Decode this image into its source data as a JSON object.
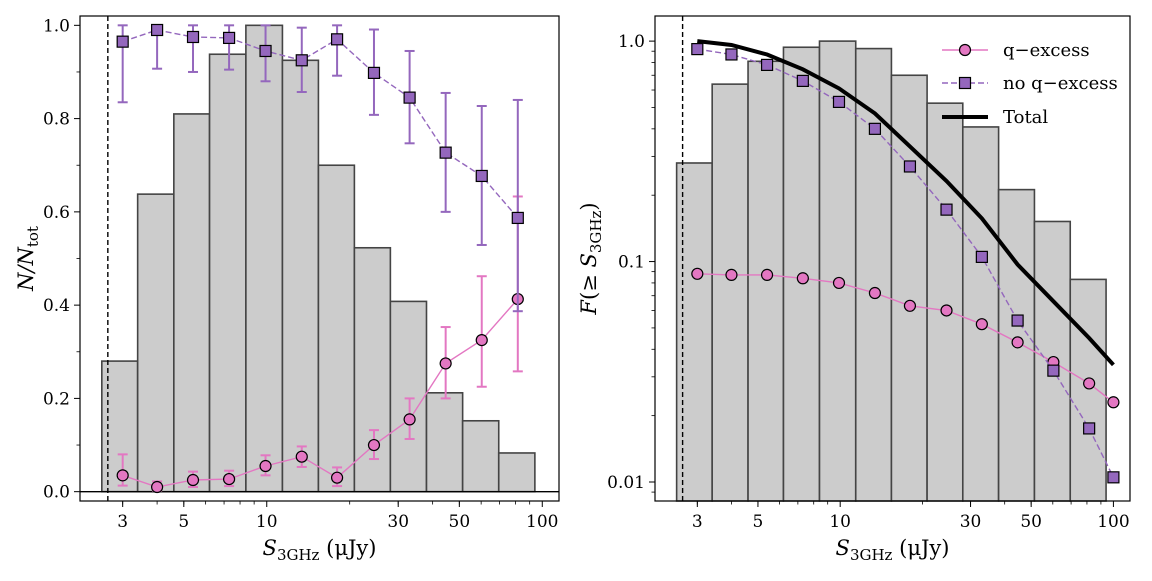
{
  "chart_data": [
    {
      "panel": "left",
      "type": "bar",
      "xlabel": "S_3GHz (μJy)",
      "ylabel": "N/N_tot",
      "xscale": "log",
      "yscale": "linear",
      "xlim": [
        2.1,
        115
      ],
      "ylim": [
        -0.02,
        1.02
      ],
      "xticks": [
        3,
        5,
        10,
        30,
        50,
        100
      ],
      "yticks": [
        "0.0",
        "0.2",
        "0.4",
        "0.6",
        "0.8",
        "1.0"
      ],
      "vline_x": 2.65,
      "hline_y": 0,
      "histogram": {
        "edges": [
          2.52,
          3.4,
          4.6,
          6.2,
          8.4,
          11.4,
          15.4,
          20.8,
          28.1,
          38.0,
          51.4,
          69.5,
          94.0
        ],
        "values": [
          0.28,
          0.638,
          0.81,
          0.938,
          1.0,
          0.925,
          0.7,
          0.523,
          0.408,
          0.212,
          0.152,
          0.083
        ]
      },
      "series": [
        {
          "name": "q-excess",
          "marker": "circle",
          "color": "#e377c2",
          "x": [
            3.0,
            4.0,
            5.4,
            7.3,
            9.9,
            13.4,
            18.0,
            24.5,
            33.0,
            44.6,
            60.3,
            81.5
          ],
          "y": [
            0.035,
            0.01,
            0.025,
            0.027,
            0.055,
            0.075,
            0.03,
            0.1,
            0.155,
            0.275,
            0.325,
            0.413
          ],
          "err_low": [
            0.022,
            0.008,
            0.015,
            0.015,
            0.02,
            0.022,
            0.018,
            0.03,
            0.042,
            0.075,
            0.1,
            0.155
          ],
          "err_high": [
            0.045,
            0.012,
            0.018,
            0.018,
            0.023,
            0.022,
            0.022,
            0.032,
            0.045,
            0.078,
            0.137,
            0.22
          ]
        },
        {
          "name": "no q-excess",
          "marker": "square",
          "color": "#9467bd",
          "x": [
            3.0,
            4.0,
            5.4,
            7.3,
            9.9,
            13.4,
            18.0,
            24.5,
            33.0,
            44.6,
            60.3,
            81.5
          ],
          "y": [
            0.965,
            0.99,
            0.975,
            0.973,
            0.945,
            0.925,
            0.97,
            0.898,
            0.845,
            0.727,
            0.677,
            0.587
          ],
          "err_low": [
            0.13,
            0.083,
            0.075,
            0.068,
            0.065,
            0.068,
            0.078,
            0.09,
            0.098,
            0.127,
            0.148,
            0.2
          ],
          "err_high": [
            0.035,
            0.01,
            0.025,
            0.027,
            0.055,
            0.07,
            0.03,
            0.093,
            0.1,
            0.128,
            0.15,
            0.253
          ]
        }
      ]
    },
    {
      "panel": "right",
      "type": "bar",
      "xlabel": "S_3GHz (μJy)",
      "ylabel": "F(≥ S_3GHz)",
      "xscale": "log",
      "yscale": "log",
      "xlim": [
        2.1,
        115
      ],
      "ylim": [
        0.0082,
        1.3
      ],
      "xticks": [
        3,
        5,
        10,
        30,
        50,
        100
      ],
      "yticks": [
        "0.01",
        "0.1",
        "1.0"
      ],
      "vline_x": 2.65,
      "histogram": {
        "edges": [
          2.52,
          3.4,
          4.6,
          6.2,
          8.4,
          11.4,
          15.4,
          20.8,
          28.1,
          38.0,
          51.4,
          69.5,
          94.0
        ],
        "values": [
          0.28,
          0.638,
          0.81,
          0.938,
          1.0,
          0.925,
          0.7,
          0.523,
          0.408,
          0.212,
          0.152,
          0.083
        ]
      },
      "series": [
        {
          "name": "q-excess",
          "marker": "circle",
          "color": "#e377c2",
          "x": [
            3.0,
            4.0,
            5.4,
            7.3,
            9.9,
            13.4,
            18.0,
            24.5,
            33.0,
            44.6,
            60.3,
            81.5,
            100.0
          ],
          "y": [
            0.088,
            0.087,
            0.087,
            0.084,
            0.08,
            0.072,
            0.063,
            0.06,
            0.052,
            0.043,
            0.035,
            0.028,
            0.023
          ]
        },
        {
          "name": "no q-excess",
          "marker": "square",
          "color": "#9467bd",
          "x": [
            3.0,
            4.0,
            5.4,
            7.3,
            9.9,
            13.4,
            18.0,
            24.5,
            33.0,
            44.6,
            60.3,
            81.5,
            100.0
          ],
          "y": [
            0.92,
            0.87,
            0.78,
            0.66,
            0.53,
            0.4,
            0.27,
            0.172,
            0.105,
            0.054,
            0.032,
            0.0175,
            0.0105
          ]
        },
        {
          "name": "Total",
          "marker": "none",
          "color": "#000000",
          "x": [
            3.0,
            4.0,
            5.4,
            7.3,
            9.9,
            13.4,
            18.0,
            24.5,
            33.0,
            44.6,
            60.3,
            81.5,
            100.0
          ],
          "y": [
            1.0,
            0.96,
            0.87,
            0.745,
            0.61,
            0.47,
            0.333,
            0.232,
            0.157,
            0.097,
            0.066,
            0.045,
            0.034
          ]
        }
      ],
      "legend": {
        "position": "top-right",
        "entries": [
          "q−excess",
          "no q−excess",
          "Total"
        ]
      }
    }
  ]
}
